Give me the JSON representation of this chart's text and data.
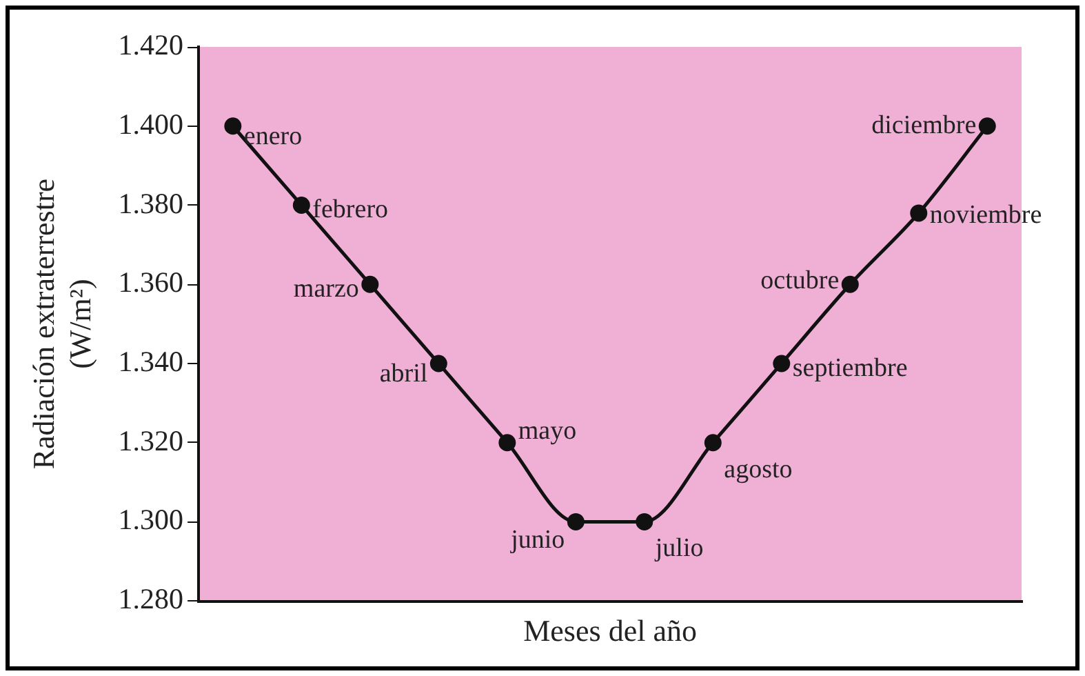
{
  "chart_data": {
    "type": "line",
    "xlabel": "Meses del año",
    "ylabel": "Radiación extraterrestre (W/m²)",
    "categories": [
      null,
      null,
      null,
      null,
      null,
      null,
      null,
      null,
      null,
      null,
      null,
      null
    ],
    "series": [
      {
        "color": "#111111",
        "values": [
          1400,
          1380,
          1360,
          1340,
          1320,
          1300,
          1300,
          1320,
          1340,
          1360,
          1378,
          1400
        ]
      }
    ],
    "annotations": [
      "enero",
      "febrero",
      "marzo",
      "abril",
      "mayo",
      "junio",
      "julio",
      "agosto",
      "septiembre",
      "octubre",
      "noviembre",
      "diciembre"
    ],
    "ylim": [
      1280,
      1420
    ],
    "yticks": [
      {
        "value": 1280,
        "label": "1.280"
      },
      {
        "value": 1300,
        "label": "1.300"
      },
      {
        "value": 1320,
        "label": "1.320"
      },
      {
        "value": 1340,
        "label": "1.340"
      },
      {
        "value": 1360,
        "label": "1.360"
      },
      {
        "value": 1380,
        "label": "1.380"
      },
      {
        "value": 1400,
        "label": "1.400"
      },
      {
        "value": 1420,
        "label": "1.420"
      }
    ],
    "tick_labels": "y",
    "grid": false,
    "legend": false,
    "marker": "circle",
    "line_style": "solid"
  }
}
